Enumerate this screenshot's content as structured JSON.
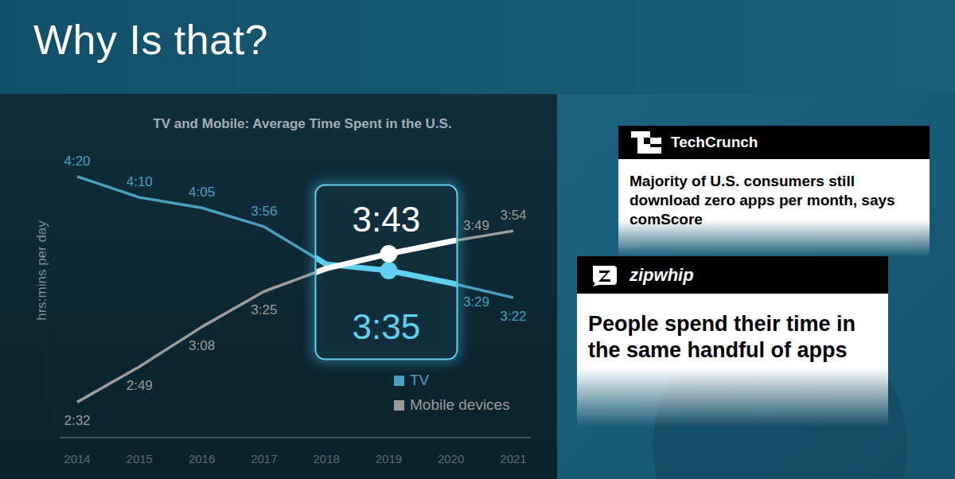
{
  "slide": {
    "title": "Why Is that?"
  },
  "chart_data": {
    "type": "line",
    "title": "TV and Mobile: Average Time Spent in the U.S.",
    "y_label": "hrs:mins per day",
    "categories": [
      "2014",
      "2015",
      "2016",
      "2017",
      "2018",
      "2019",
      "2020",
      "2021"
    ],
    "series": [
      {
        "name": "TV",
        "color": "#4a9fbd",
        "values": [
          260,
          250,
          245,
          236,
          218,
          215,
          209,
          202
        ],
        "value_labels": [
          "4:20",
          "4:10",
          "4:05",
          "3:56",
          null,
          "3:35",
          "3:29",
          "3:22"
        ]
      },
      {
        "name": "Mobile devices",
        "color": "#9b9b9b",
        "values": [
          152,
          169,
          188,
          205,
          216,
          223,
          229,
          234
        ],
        "value_labels": [
          "2:32",
          "2:49",
          "3:08",
          "3:25",
          null,
          "3:43",
          "3:49",
          "3:54"
        ]
      }
    ],
    "ylim": [
      135,
      295
    ],
    "tick_labels": "x",
    "data_labels": true,
    "legend": "lower right",
    "callout": "2019"
  },
  "cards": [
    {
      "source": "TechCrunch",
      "headline": "Majority of U.S. consumers still download zero apps per month, says comScore"
    },
    {
      "source": "zipwhip",
      "headline": "People spend their time in the same handful of apps"
    }
  ]
}
